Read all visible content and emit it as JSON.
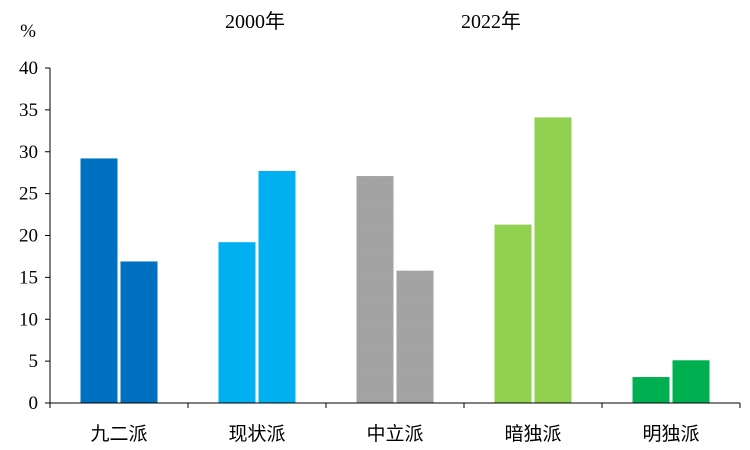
{
  "chart_data": {
    "type": "bar",
    "y_unit": "%",
    "column_headers": [
      "2000年",
      "2022年"
    ],
    "categories": [
      "九二派",
      "现状派",
      "中立派",
      "暗独派",
      "明独派"
    ],
    "series": [
      {
        "values": [
          29.2,
          19.2,
          27.1,
          21.3,
          3.1
        ]
      },
      {
        "values": [
          16.9,
          27.7,
          15.8,
          34.1,
          5.1
        ]
      }
    ],
    "category_colors": [
      "#0070C0",
      "#00B0F0",
      "#A6A6A6",
      "#92D050",
      "#00B050"
    ],
    "ylim": [
      0,
      40
    ],
    "yticks": [
      0,
      5,
      10,
      15,
      20,
      25,
      30,
      35,
      40
    ],
    "grid": false,
    "legend": "none"
  }
}
